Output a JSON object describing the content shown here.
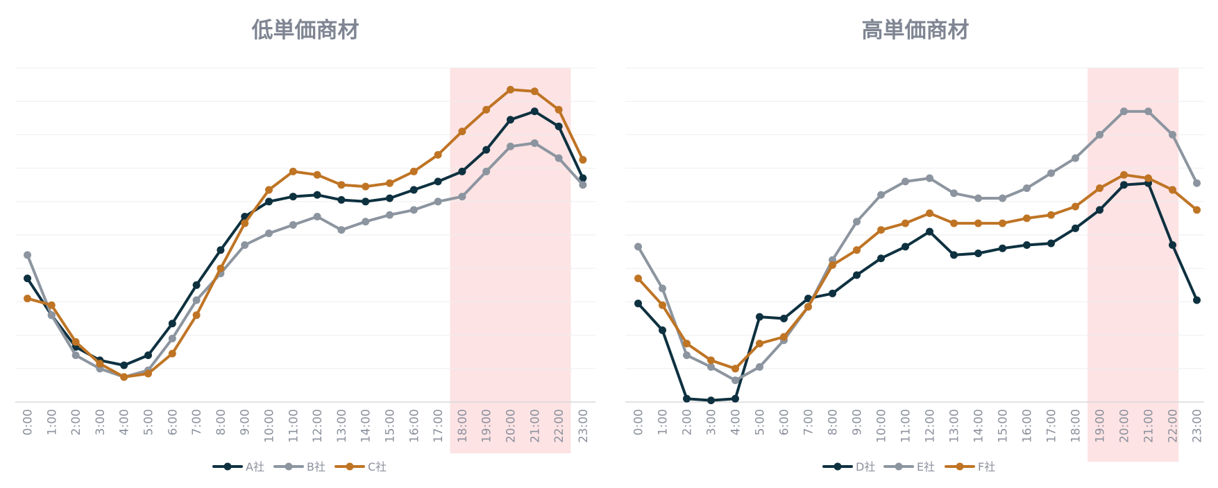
{
  "colors": {
    "dark": "#0e3140",
    "gray": "#8c959f",
    "orange": "#bf7424",
    "highlight": "#fde3e4",
    "grid": "#eeeeee",
    "axis": "#d9d9d9"
  },
  "chart_data": [
    {
      "type": "line",
      "title": "低単価商材",
      "categories": [
        "0:00",
        "1:00",
        "2:00",
        "3:00",
        "4:00",
        "5:00",
        "6:00",
        "7:00",
        "8:00",
        "9:00",
        "10:00",
        "11:00",
        "12:00",
        "13:00",
        "14:00",
        "15:00",
        "16:00",
        "17:00",
        "18:00",
        "19:00",
        "20:00",
        "21:00",
        "22:00",
        "23:00"
      ],
      "ylim": [
        0,
        100
      ],
      "grid": true,
      "legend_position": "bottom",
      "highlight_range": [
        "17:30",
        "22:30"
      ],
      "series": [
        {
          "name": "A社",
          "color": "#0e3140",
          "values": [
            37,
            26,
            16.5,
            12.5,
            11,
            14,
            23.5,
            35,
            45.5,
            55.5,
            60,
            61.5,
            62,
            60.5,
            60,
            61,
            63.5,
            66,
            69,
            75.5,
            84.5,
            87,
            82.5,
            67
          ]
        },
        {
          "name": "B社",
          "color": "#8c959f",
          "values": [
            44,
            26,
            14,
            10,
            7.5,
            9.5,
            19,
            30.5,
            38.5,
            47,
            50.5,
            53,
            55.5,
            51.5,
            54,
            56,
            57.5,
            60,
            61.5,
            69,
            76.5,
            77.5,
            73,
            65
          ]
        },
        {
          "name": "C社",
          "color": "#bf7424",
          "values": [
            31,
            29,
            18,
            11.5,
            7.5,
            8.5,
            14.5,
            26,
            40,
            53.5,
            63.5,
            69,
            68,
            65,
            64.5,
            65.5,
            69,
            74,
            81,
            87.5,
            93.5,
            93,
            87.5,
            72.5
          ]
        }
      ]
    },
    {
      "type": "line",
      "title": "高単価商材",
      "categories": [
        "0:00",
        "1:00",
        "2:00",
        "3:00",
        "4:00",
        "5:00",
        "6:00",
        "7:00",
        "8:00",
        "9:00",
        "10:00",
        "11:00",
        "12:00",
        "13:00",
        "14:00",
        "15:00",
        "16:00",
        "17:00",
        "18:00",
        "19:00",
        "20:00",
        "21:00",
        "22:00",
        "23:00"
      ],
      "ylim": [
        0,
        100
      ],
      "grid": true,
      "legend_position": "bottom",
      "highlight_range": [
        "18:30",
        "22:15"
      ],
      "series": [
        {
          "name": "D社",
          "color": "#0e3140",
          "values": [
            29.5,
            21.5,
            1,
            0.5,
            1,
            25.5,
            25,
            31,
            32.5,
            38,
            43,
            46.5,
            51,
            44,
            44.5,
            46,
            47,
            47.5,
            52,
            57.5,
            65,
            65.5,
            47,
            30.5
          ]
        },
        {
          "name": "E社",
          "color": "#8c959f",
          "values": [
            46.5,
            34,
            14,
            10.5,
            6.5,
            10.5,
            18.5,
            28.5,
            42.5,
            54,
            62,
            66,
            67,
            62.5,
            61,
            61,
            64,
            68.5,
            73,
            80,
            87,
            87,
            80,
            65.5
          ]
        },
        {
          "name": "F社",
          "color": "#bf7424",
          "values": [
            37,
            29,
            17.5,
            12.5,
            10,
            17.5,
            19.5,
            28.5,
            41,
            45.5,
            51.5,
            53.5,
            56.5,
            53.5,
            53.5,
            53.5,
            55,
            56,
            58.5,
            64,
            68,
            67,
            63.5,
            57.5
          ]
        }
      ]
    }
  ]
}
